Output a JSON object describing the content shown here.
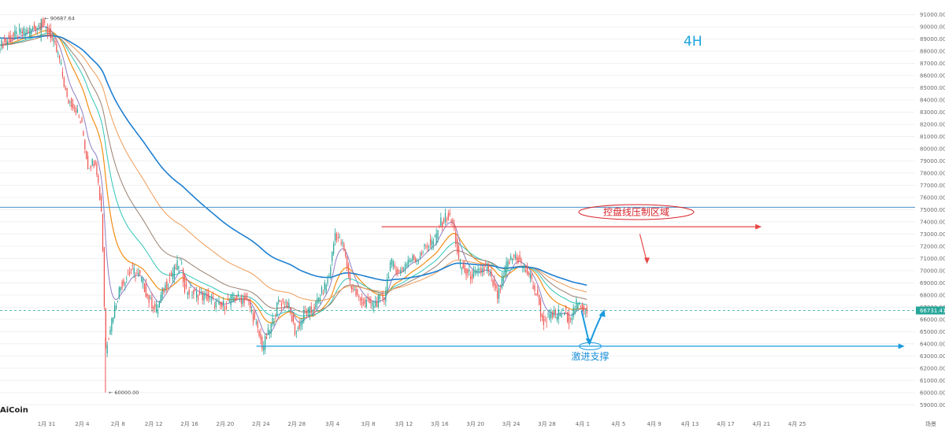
{
  "chart_data": {
    "type": "candlestick",
    "timeframe_label": "4H",
    "brand": "AiCoin",
    "y_axis": {
      "ticks": [
        "91000.00",
        "90000.00",
        "89000.00",
        "88000.00",
        "87000.00",
        "86000.00",
        "85000.00",
        "84000.00",
        "83000.00",
        "82000.00",
        "81000.00",
        "80000.00",
        "79000.00",
        "78000.00",
        "77000.00",
        "76000.00",
        "75000.00",
        "74000.00",
        "73000.00",
        "72000.00",
        "71000.00",
        "70000.00",
        "69000.00",
        "68000.00",
        "67000.00",
        "66000.00",
        "65000.00",
        "64000.00",
        "63000.00",
        "62000.00",
        "61000.00",
        "60000.00",
        "59000.00"
      ],
      "ylim": [
        58500,
        92200
      ],
      "current_price_label": "66731.41",
      "current_price": 66731.41,
      "axis_corner_label": "场景"
    },
    "x_axis": {
      "ticks": [
        "1月 31",
        "2月 4",
        "2月 8",
        "2月 12",
        "2月 16",
        "2月 20",
        "2月 24",
        "2月 28",
        "3月 4",
        "3月 8",
        "3月 12",
        "3月 16",
        "3月 20",
        "3月 24",
        "3月 28",
        "4月 1",
        "4月 5",
        "4月 9",
        "4月 13",
        "4月 17",
        "4月 21",
        "4月 25"
      ],
      "first_tick_day": 0,
      "tick_step_days": 4,
      "xlim_days": [
        -5.2,
        97.2
      ],
      "last_data_day": 60.5
    },
    "markers": {
      "high_label": "90687.64",
      "high_value": 90687.64,
      "high_day": -0.6,
      "low_label": "60000.00",
      "low_value": 60000,
      "low_day": 6.6
    },
    "key_points": [
      {
        "day": -5.2,
        "close": 88500
      },
      {
        "day": -3.5,
        "close": 89300
      },
      {
        "day": -1.5,
        "close": 89800
      },
      {
        "day": -0.6,
        "close": 90300
      },
      {
        "day": 0.5,
        "close": 89300
      },
      {
        "day": 1.5,
        "close": 87200
      },
      {
        "day": 2.3,
        "close": 84000
      },
      {
        "day": 3.2,
        "close": 83500
      },
      {
        "day": 4.0,
        "close": 81800
      },
      {
        "day": 4.6,
        "close": 78600
      },
      {
        "day": 5.5,
        "close": 79100
      },
      {
        "day": 6.2,
        "close": 74500
      },
      {
        "day": 6.6,
        "close": 63500
      },
      {
        "day": 7.3,
        "close": 66000
      },
      {
        "day": 8.2,
        "close": 68600
      },
      {
        "day": 9.5,
        "close": 70100
      },
      {
        "day": 10.5,
        "close": 69500
      },
      {
        "day": 11.5,
        "close": 67500
      },
      {
        "day": 12.4,
        "close": 66800
      },
      {
        "day": 13.0,
        "close": 68300
      },
      {
        "day": 14.0,
        "close": 69700
      },
      {
        "day": 15.0,
        "close": 70800
      },
      {
        "day": 15.5,
        "close": 68500
      },
      {
        "day": 16.5,
        "close": 68100
      },
      {
        "day": 18.0,
        "close": 67800
      },
      {
        "day": 19.5,
        "close": 67000
      },
      {
        "day": 21.0,
        "close": 67800
      },
      {
        "day": 22.5,
        "close": 67600
      },
      {
        "day": 23.4,
        "close": 65600
      },
      {
        "day": 24.2,
        "close": 63700
      },
      {
        "day": 25.2,
        "close": 65600
      },
      {
        "day": 26.0,
        "close": 67500
      },
      {
        "day": 27.0,
        "close": 67300
      },
      {
        "day": 27.9,
        "close": 64800
      },
      {
        "day": 28.8,
        "close": 66400
      },
      {
        "day": 29.8,
        "close": 66700
      },
      {
        "day": 30.8,
        "close": 68200
      },
      {
        "day": 31.6,
        "close": 69400
      },
      {
        "day": 32.3,
        "close": 73100
      },
      {
        "day": 33.2,
        "close": 72000
      },
      {
        "day": 34.0,
        "close": 68900
      },
      {
        "day": 35.0,
        "close": 67600
      },
      {
        "day": 36.5,
        "close": 67200
      },
      {
        "day": 37.8,
        "close": 67900
      },
      {
        "day": 38.5,
        "close": 70700
      },
      {
        "day": 39.5,
        "close": 69800
      },
      {
        "day": 40.5,
        "close": 70900
      },
      {
        "day": 41.5,
        "close": 71000
      },
      {
        "day": 42.5,
        "close": 72000
      },
      {
        "day": 43.5,
        "close": 72500
      },
      {
        "day": 44.0,
        "close": 73800
      },
      {
        "day": 44.8,
        "close": 74500
      },
      {
        "day": 45.5,
        "close": 73900
      },
      {
        "day": 46.2,
        "close": 70500
      },
      {
        "day": 47.0,
        "close": 69700
      },
      {
        "day": 48.0,
        "close": 69600
      },
      {
        "day": 49.2,
        "close": 70300
      },
      {
        "day": 50.0,
        "close": 68800
      },
      {
        "day": 50.5,
        "close": 67800
      },
      {
        "day": 51.5,
        "close": 70500
      },
      {
        "day": 52.5,
        "close": 71300
      },
      {
        "day": 53.3,
        "close": 70300
      },
      {
        "day": 54.0,
        "close": 69700
      },
      {
        "day": 55.0,
        "close": 67700
      },
      {
        "day": 55.5,
        "close": 65800
      },
      {
        "day": 56.3,
        "close": 66200
      },
      {
        "day": 57.0,
        "close": 66400
      },
      {
        "day": 58.0,
        "close": 66600
      },
      {
        "day": 58.5,
        "close": 66000
      },
      {
        "day": 59.3,
        "close": 67200
      },
      {
        "day": 60.0,
        "close": 66900
      },
      {
        "day": 60.5,
        "close": 66700
      }
    ],
    "moving_averages": [
      {
        "color": "#f28e16",
        "smoothing": 0.08,
        "width": 1.2
      },
      {
        "color": "#8e7cc3",
        "smoothing": 0.2,
        "width": 1.0
      },
      {
        "color": "#2fc6b8",
        "smoothing": 0.05,
        "width": 1.0
      },
      {
        "color": "#9a8070",
        "smoothing": 0.035,
        "width": 1.0
      },
      {
        "color": "#ef9b56",
        "smoothing": 0.022,
        "width": 1.0
      },
      {
        "color": "#1e7fd1",
        "smoothing": 0.014,
        "width": 1.6
      }
    ],
    "lines": [
      {
        "kind": "horizontal",
        "value": 75200,
        "color": "#4a90c8"
      },
      {
        "kind": "ray",
        "value": 73600,
        "from_day": 37.5,
        "to_day": 79.5,
        "color": "#e84848"
      },
      {
        "kind": "ray",
        "value": 63800,
        "from_day": 23.5,
        "to_day": 95.5,
        "color": "#1a9be0"
      }
    ],
    "annotations": [
      {
        "text": "控盘线压制区域",
        "color": "#d8232a",
        "shape": "ellipse",
        "day": 66,
        "value": 74800
      },
      {
        "text": "激进支撑",
        "color": "#1a8fd6",
        "day": 60.5,
        "value": 62700
      }
    ],
    "colors": {
      "up": "#26a69a",
      "down": "#ef5350",
      "grid": "#f0f0f0",
      "price_tag": "#26a69a"
    }
  }
}
